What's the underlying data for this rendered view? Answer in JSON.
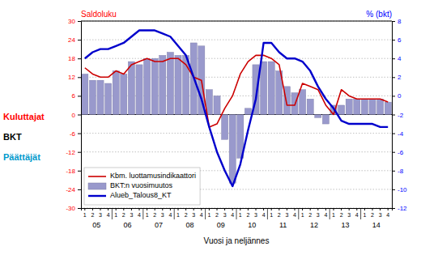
{
  "chart_data": {
    "type": "bar",
    "ylabel": "Saldoluku",
    "y2label": "% (bkt)",
    "xlabel": "Vuosi ja neljännes",
    "annotations": [
      {
        "text": "Kuluttajat",
        "color": "red"
      },
      {
        "text": "BKT",
        "color": "black"
      },
      {
        "text": "Päättäjät",
        "color": "#0099cc"
      }
    ],
    "categories": [
      "1",
      "2",
      "3",
      "4",
      "1",
      "2",
      "3",
      "4",
      "1",
      "2",
      "3",
      "4",
      "1",
      "2",
      "3",
      "4",
      "1",
      "2",
      "3",
      "4",
      "1",
      "2",
      "3",
      "4",
      "1",
      "2",
      "3",
      "4",
      "1",
      "2",
      "3",
      "4",
      "1",
      "2",
      "3",
      "4",
      "1",
      "2",
      "3",
      "4"
    ],
    "x_groups": [
      "05",
      "06",
      "07",
      "08",
      "09",
      "10",
      "11",
      "12",
      "13",
      "14"
    ],
    "series": [
      {
        "name": "Kbm. luottamusindikaattori",
        "type": "line",
        "color": "#cc0000",
        "values": [
          15,
          13,
          12,
          12,
          14,
          13,
          16,
          17,
          18,
          17,
          17,
          18,
          18,
          16,
          12,
          11,
          -4,
          -3,
          2,
          6,
          13,
          17,
          19,
          19,
          18,
          16,
          3,
          3,
          10,
          9,
          8,
          3,
          0,
          8,
          6,
          5,
          5,
          5,
          5,
          4
        ]
      },
      {
        "name": "BKT:n vuosimuutos",
        "type": "bar",
        "color": "#9999cc",
        "values": [
          13,
          11,
          11,
          10,
          14,
          13,
          17,
          16,
          18,
          18,
          19,
          20,
          19,
          19,
          23,
          22,
          8,
          6,
          -8,
          -22,
          -14,
          2,
          16,
          17,
          17,
          14,
          9,
          7,
          8,
          5,
          -1,
          -3,
          3,
          3,
          5,
          5,
          5,
          5,
          5,
          4
        ]
      },
      {
        "name": "Alueb_Talous8_KT",
        "type": "line",
        "color": "#0000cc",
        "values": [
          18,
          20,
          21,
          21,
          22,
          23,
          25,
          27,
          27,
          27,
          26,
          25,
          22,
          19,
          12,
          5,
          -4,
          -12,
          -18,
          -23,
          -16,
          -5,
          5,
          23,
          23,
          20,
          18,
          18,
          17,
          14,
          9,
          5,
          2,
          -2,
          -3,
          -3,
          -3,
          -3,
          -4,
          -4
        ]
      }
    ],
    "ylim": [
      -30,
      30
    ],
    "yticks": [
      -30,
      -24,
      -18,
      -12,
      -6,
      0,
      6,
      12,
      18,
      24,
      30
    ],
    "y2lim": [
      -12,
      8
    ],
    "y2ticks": [
      -12,
      -10,
      -8,
      -6,
      -4,
      -2,
      0,
      2,
      4,
      6,
      8
    ],
    "grid": true,
    "legend": "lower left"
  }
}
